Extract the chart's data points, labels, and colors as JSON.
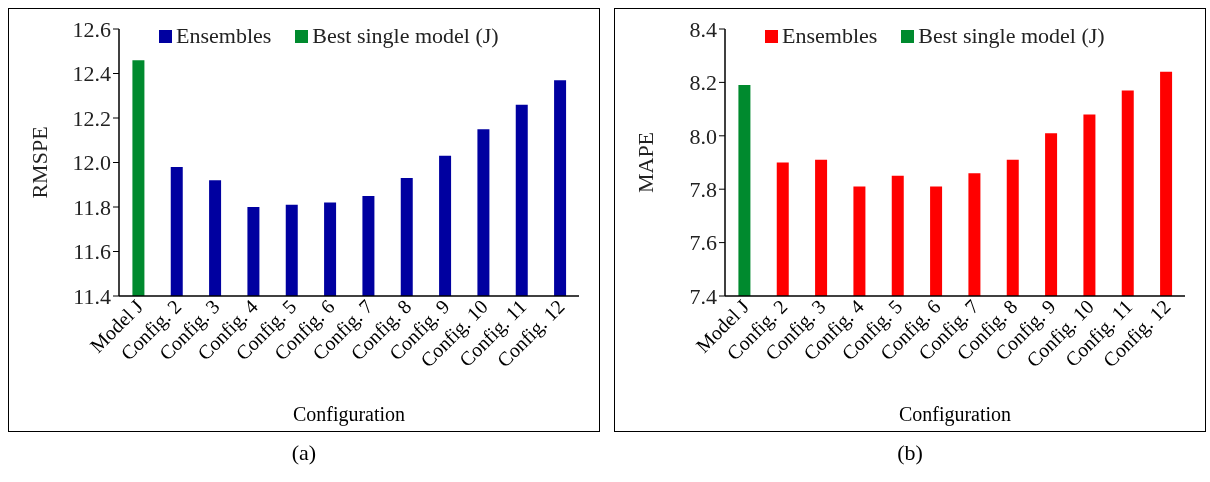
{
  "chart_data": [
    {
      "type": "bar",
      "categories": [
        "Model J",
        "Config. 2",
        "Config. 3",
        "Config. 4",
        "Config. 5",
        "Config. 6",
        "Config. 7",
        "Config. 8",
        "Config. 9",
        "Config. 10",
        "Config. 11",
        "Config. 12"
      ],
      "xlabel": "Configuration",
      "ylabel": "RMSPE",
      "ylim": [
        11.4,
        12.6
      ],
      "yticks": [
        {
          "value": 11.4,
          "label": "11.4"
        },
        {
          "value": 11.6,
          "label": "11.6"
        },
        {
          "value": 11.8,
          "label": "11.8"
        },
        {
          "value": 12.0,
          "label": "12.0"
        },
        {
          "value": 12.2,
          "label": "12.2"
        },
        {
          "value": 12.4,
          "label": "12.4"
        },
        {
          "value": 12.6,
          "label": "12.6"
        }
      ],
      "grid": false,
      "legend": "top",
      "annotations": [
        "(a)"
      ],
      "series": [
        {
          "name": "Ensembles",
          "color": "#0000a0",
          "values": [
            null,
            11.98,
            11.92,
            11.8,
            11.81,
            11.82,
            11.85,
            11.93,
            12.03,
            12.15,
            12.26,
            12.37
          ]
        },
        {
          "name": "Best single model (J)",
          "color": "#008a2e",
          "values": [
            12.46,
            null,
            null,
            null,
            null,
            null,
            null,
            null,
            null,
            null,
            null,
            null
          ]
        }
      ]
    },
    {
      "type": "bar",
      "categories": [
        "Model J",
        "Config. 2",
        "Config. 3",
        "Config. 4",
        "Config. 5",
        "Config. 6",
        "Config. 7",
        "Config. 8",
        "Config. 9",
        "Config. 10",
        "Config. 11",
        "Config. 12"
      ],
      "xlabel": "Configuration",
      "ylabel": "MAPE",
      "ylim": [
        7.4,
        8.4
      ],
      "yticks": [
        {
          "value": 7.4,
          "label": "7.4"
        },
        {
          "value": 7.6,
          "label": "7.6"
        },
        {
          "value": 7.8,
          "label": "7.8"
        },
        {
          "value": 8.0,
          "label": "8.0"
        },
        {
          "value": 8.2,
          "label": "8.2"
        },
        {
          "value": 8.4,
          "label": "8.4"
        }
      ],
      "grid": false,
      "legend": "top",
      "annotations": [
        "(b)"
      ],
      "series": [
        {
          "name": "Ensembles",
          "color": "#ff0000",
          "values": [
            null,
            7.9,
            7.91,
            7.81,
            7.85,
            7.81,
            7.86,
            7.91,
            8.01,
            8.08,
            8.17,
            8.24
          ]
        },
        {
          "name": "Best single model (J)",
          "color": "#008a2e",
          "values": [
            8.19,
            null,
            null,
            null,
            null,
            null,
            null,
            null,
            null,
            null,
            null,
            null
          ]
        }
      ]
    }
  ]
}
